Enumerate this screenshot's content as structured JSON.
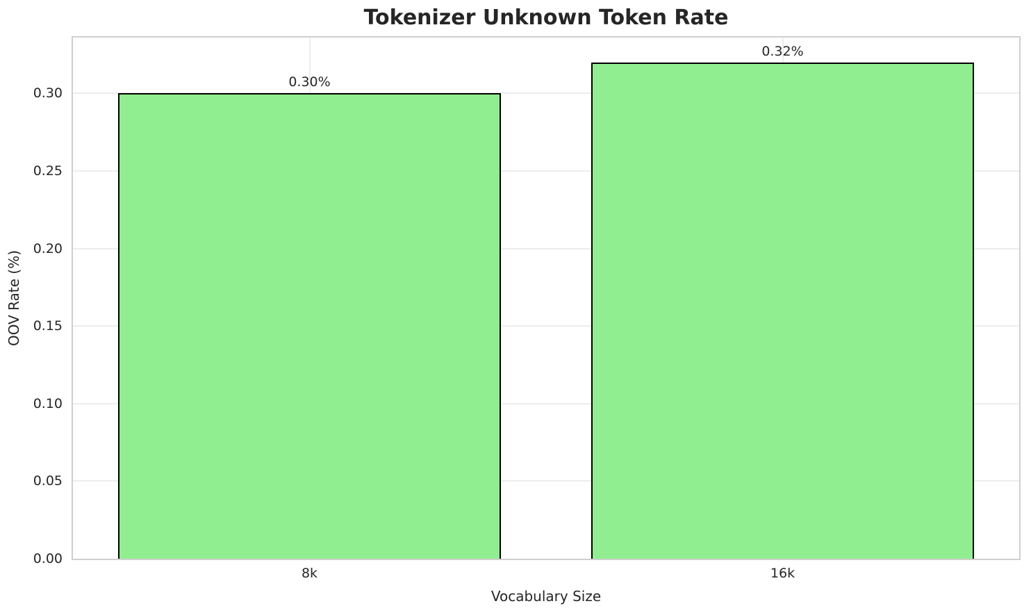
{
  "chart_data": {
    "type": "bar",
    "title": "Tokenizer Unknown Token Rate",
    "xlabel": "Vocabulary Size",
    "ylabel": "OOV Rate (%)",
    "categories": [
      "8k",
      "16k"
    ],
    "values": [
      0.3,
      0.32
    ],
    "bar_labels": [
      "0.30%",
      "0.32%"
    ],
    "ylim": [
      0,
      0.336
    ],
    "yticks": [
      0.0,
      0.05,
      0.1,
      0.15,
      0.2,
      0.25,
      0.3
    ],
    "ytick_labels": [
      "0.00",
      "0.05",
      "0.10",
      "0.15",
      "0.20",
      "0.25",
      "0.30"
    ],
    "grid": "both",
    "legend": "none",
    "colors": {
      "bar_fill": "#90EE90",
      "bar_edge": "#000000",
      "grid_line": "#ededed",
      "spine": "#cfcfcf",
      "text": "#262626",
      "background": "#ffffff"
    }
  }
}
